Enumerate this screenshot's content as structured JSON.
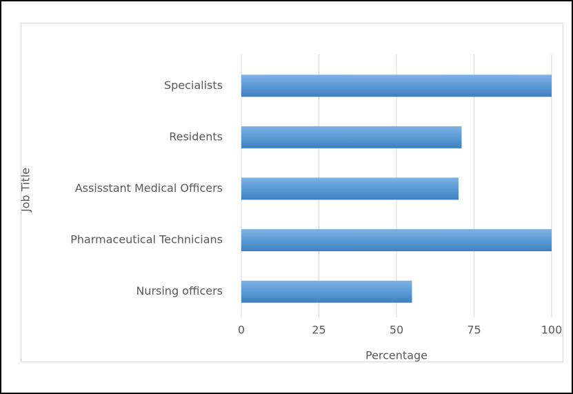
{
  "chart_data": {
    "type": "bar",
    "orientation": "horizontal",
    "categories": [
      "Specialists",
      "Residents",
      "Assisstant Medical Officers",
      "Pharmaceutical Technicians",
      "Nursing officers"
    ],
    "values": [
      100,
      71,
      70,
      100,
      55
    ],
    "color": "#5b9bd5",
    "xlabel": "Percentage",
    "ylabel": "Job Title",
    "xlim": [
      0,
      100
    ],
    "xticks": [
      0,
      25,
      50,
      75,
      100
    ],
    "grid": true
  }
}
